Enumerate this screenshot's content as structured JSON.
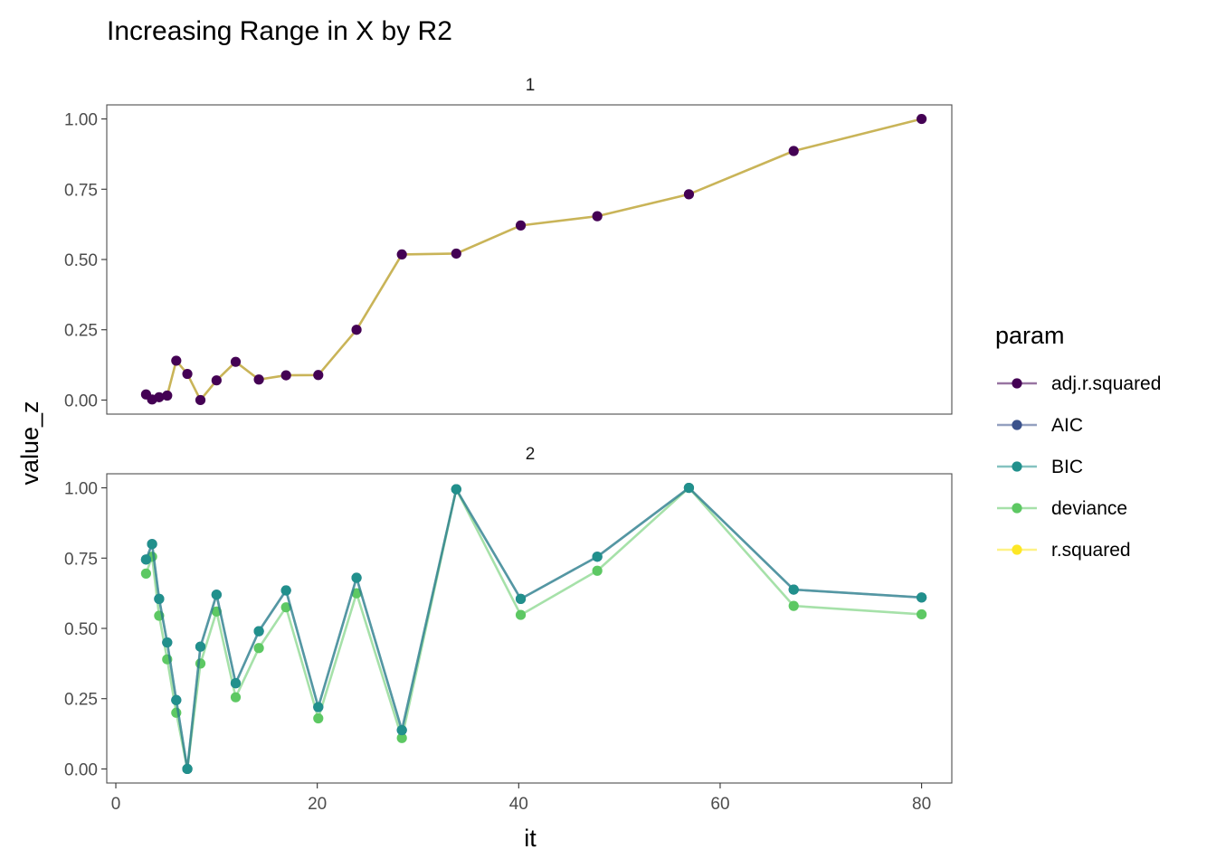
{
  "chart_data": {
    "type": "line",
    "title": "Increasing Range in X by R2",
    "xlabel": "it",
    "ylabel": "value_z",
    "xlim": [
      -0.9,
      83
    ],
    "ylim": [
      -0.05,
      1.05
    ],
    "xticks": [
      0,
      20,
      40,
      60,
      80
    ],
    "xtick_labels": [
      "0",
      "20",
      "40",
      "60",
      "80"
    ],
    "yticks": [
      0,
      0.25,
      0.5,
      0.75,
      1.0
    ],
    "ytick_labels": [
      "0.00",
      "0.25",
      "0.50",
      "0.75",
      "1.00"
    ],
    "grid": false,
    "legend": {
      "title": "param",
      "position": "right",
      "entries": [
        {
          "label": "adj.r.squared",
          "color": "#440154"
        },
        {
          "label": "AIC",
          "color": "#3b528b"
        },
        {
          "label": "BIC",
          "color": "#21908c"
        },
        {
          "label": "deviance",
          "color": "#5dc863"
        },
        {
          "label": "r.squared",
          "color": "#fde725"
        }
      ]
    },
    "x": [
      3,
      3.6,
      4.3,
      5.1,
      6,
      7.1,
      8.4,
      10,
      11.9,
      14.2,
      16.9,
      20.1,
      23.9,
      28.4,
      33.8,
      40.2,
      47.8,
      56.9,
      67.3,
      80
    ],
    "panels": [
      {
        "label": "1",
        "series": [
          {
            "name": "r.squared",
            "color": "#fde725",
            "line_color": "#c9b458",
            "line_opacity": 1,
            "points": false,
            "values": [
              0.02,
              0.002,
              0.01,
              0.016,
              0.14,
              0.093,
              0.0,
              0.07,
              0.136,
              0.073,
              0.088,
              0.089,
              0.25,
              0.518,
              0.521,
              0.621,
              0.654,
              0.732,
              0.886,
              1.0
            ]
          },
          {
            "name": "adj.r.squared",
            "color": "#440154",
            "line_color": "#440154",
            "line_opacity": 0,
            "points": true,
            "values": [
              0.02,
              0.002,
              0.01,
              0.016,
              0.14,
              0.093,
              0.0,
              0.07,
              0.136,
              0.073,
              0.088,
              0.089,
              0.25,
              0.518,
              0.521,
              0.621,
              0.654,
              0.732,
              0.886,
              1.0
            ]
          }
        ]
      },
      {
        "label": "2",
        "series": [
          {
            "name": "deviance",
            "color": "#5dc863",
            "line_color": "#5dc863",
            "line_opacity": 0.55,
            "points": true,
            "values": [
              0.695,
              0.755,
              0.545,
              0.39,
              0.2,
              0.0,
              0.375,
              0.56,
              0.255,
              0.43,
              0.575,
              0.18,
              0.625,
              0.11,
              0.995,
              0.548,
              0.705,
              1.0,
              0.58,
              0.55
            ]
          },
          {
            "name": "AIC",
            "color": "#3b528b",
            "line_color": "#3b528b",
            "line_opacity": 0.55,
            "points": true,
            "values": [
              0.745,
              0.8,
              0.605,
              0.45,
              0.245,
              0.0,
              0.435,
              0.62,
              0.305,
              0.49,
              0.635,
              0.22,
              0.68,
              0.138,
              0.995,
              0.605,
              0.755,
              1.0,
              0.638,
              0.61
            ]
          },
          {
            "name": "BIC",
            "color": "#21908c",
            "line_color": "#21908c",
            "line_opacity": 0.55,
            "points": true,
            "values": [
              0.745,
              0.8,
              0.605,
              0.45,
              0.245,
              0.0,
              0.435,
              0.62,
              0.305,
              0.49,
              0.635,
              0.22,
              0.68,
              0.138,
              0.995,
              0.605,
              0.755,
              1.0,
              0.638,
              0.61
            ]
          }
        ]
      }
    ]
  }
}
